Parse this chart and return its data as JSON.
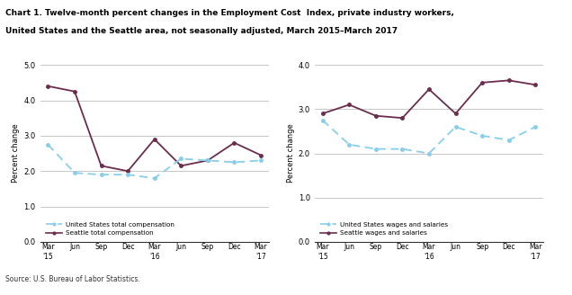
{
  "title_line1": "Chart 1. Twelve-month percent changes in the Employment Cost  Index, private industry workers,",
  "title_line2": "United States and the Seattle area, not seasonally adjusted, March 2015–March 2017",
  "source": "Source: U.S. Bureau of Labor Statistics.",
  "ylabel": "Percent change",
  "left": {
    "us_total_comp": [
      2.75,
      1.95,
      1.9,
      1.9,
      1.8,
      2.35,
      2.3,
      2.25,
      2.3
    ],
    "seattle_total_comp": [
      4.4,
      4.25,
      2.15,
      2.0,
      2.9,
      2.15,
      2.3,
      2.8,
      2.45
    ],
    "ylim": [
      0.0,
      5.0
    ],
    "yticks": [
      0.0,
      1.0,
      2.0,
      3.0,
      4.0,
      5.0
    ],
    "legend1": "United States total compensation",
    "legend2": "Seattle total compensation"
  },
  "right": {
    "us_wages": [
      2.75,
      2.2,
      2.1,
      2.1,
      2.0,
      2.6,
      2.4,
      2.3,
      2.6
    ],
    "seattle_wages": [
      2.9,
      3.1,
      2.85,
      2.8,
      3.45,
      2.9,
      3.6,
      3.65,
      3.55
    ],
    "ylim": [
      0.0,
      4.0
    ],
    "yticks": [
      0.0,
      1.0,
      2.0,
      3.0,
      4.0
    ],
    "legend1": "United States wages and salaries",
    "legend2": "Seattle wages and salaries"
  },
  "us_color": "#87CEEB",
  "seattle_color": "#6B2D4E",
  "background_color": "#ffffff",
  "grid_color": "#b0b0b0"
}
